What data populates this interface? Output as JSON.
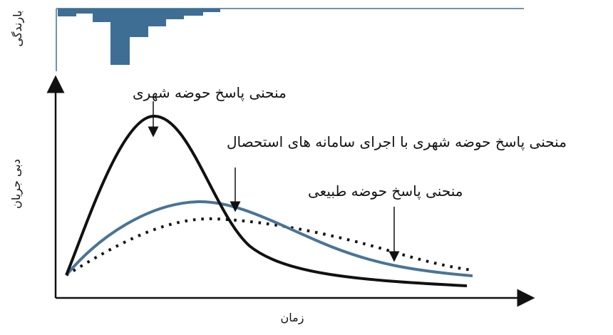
{
  "labels": {
    "rainfall_axis": "بارندگی",
    "flow_axis": "دبی جریان",
    "time_axis": "زمان",
    "urban_curve": "منحنی پاسخ حوضه شهری",
    "urban_with_systems_curve": "منحنی پاسخ حوضه شهری با اجرای سامانه های استحصال",
    "natural_curve": "منحنی پاسخ حوضه طبیعی"
  },
  "colors": {
    "urban": "#111111",
    "urban_with_systems": "#4a7497",
    "natural": "#111111",
    "rainfall_bars": "#3f6e95",
    "axes": "#111111"
  },
  "line_styles": {
    "urban": "solid",
    "urban_with_systems": "solid",
    "natural": "dotted"
  }
}
